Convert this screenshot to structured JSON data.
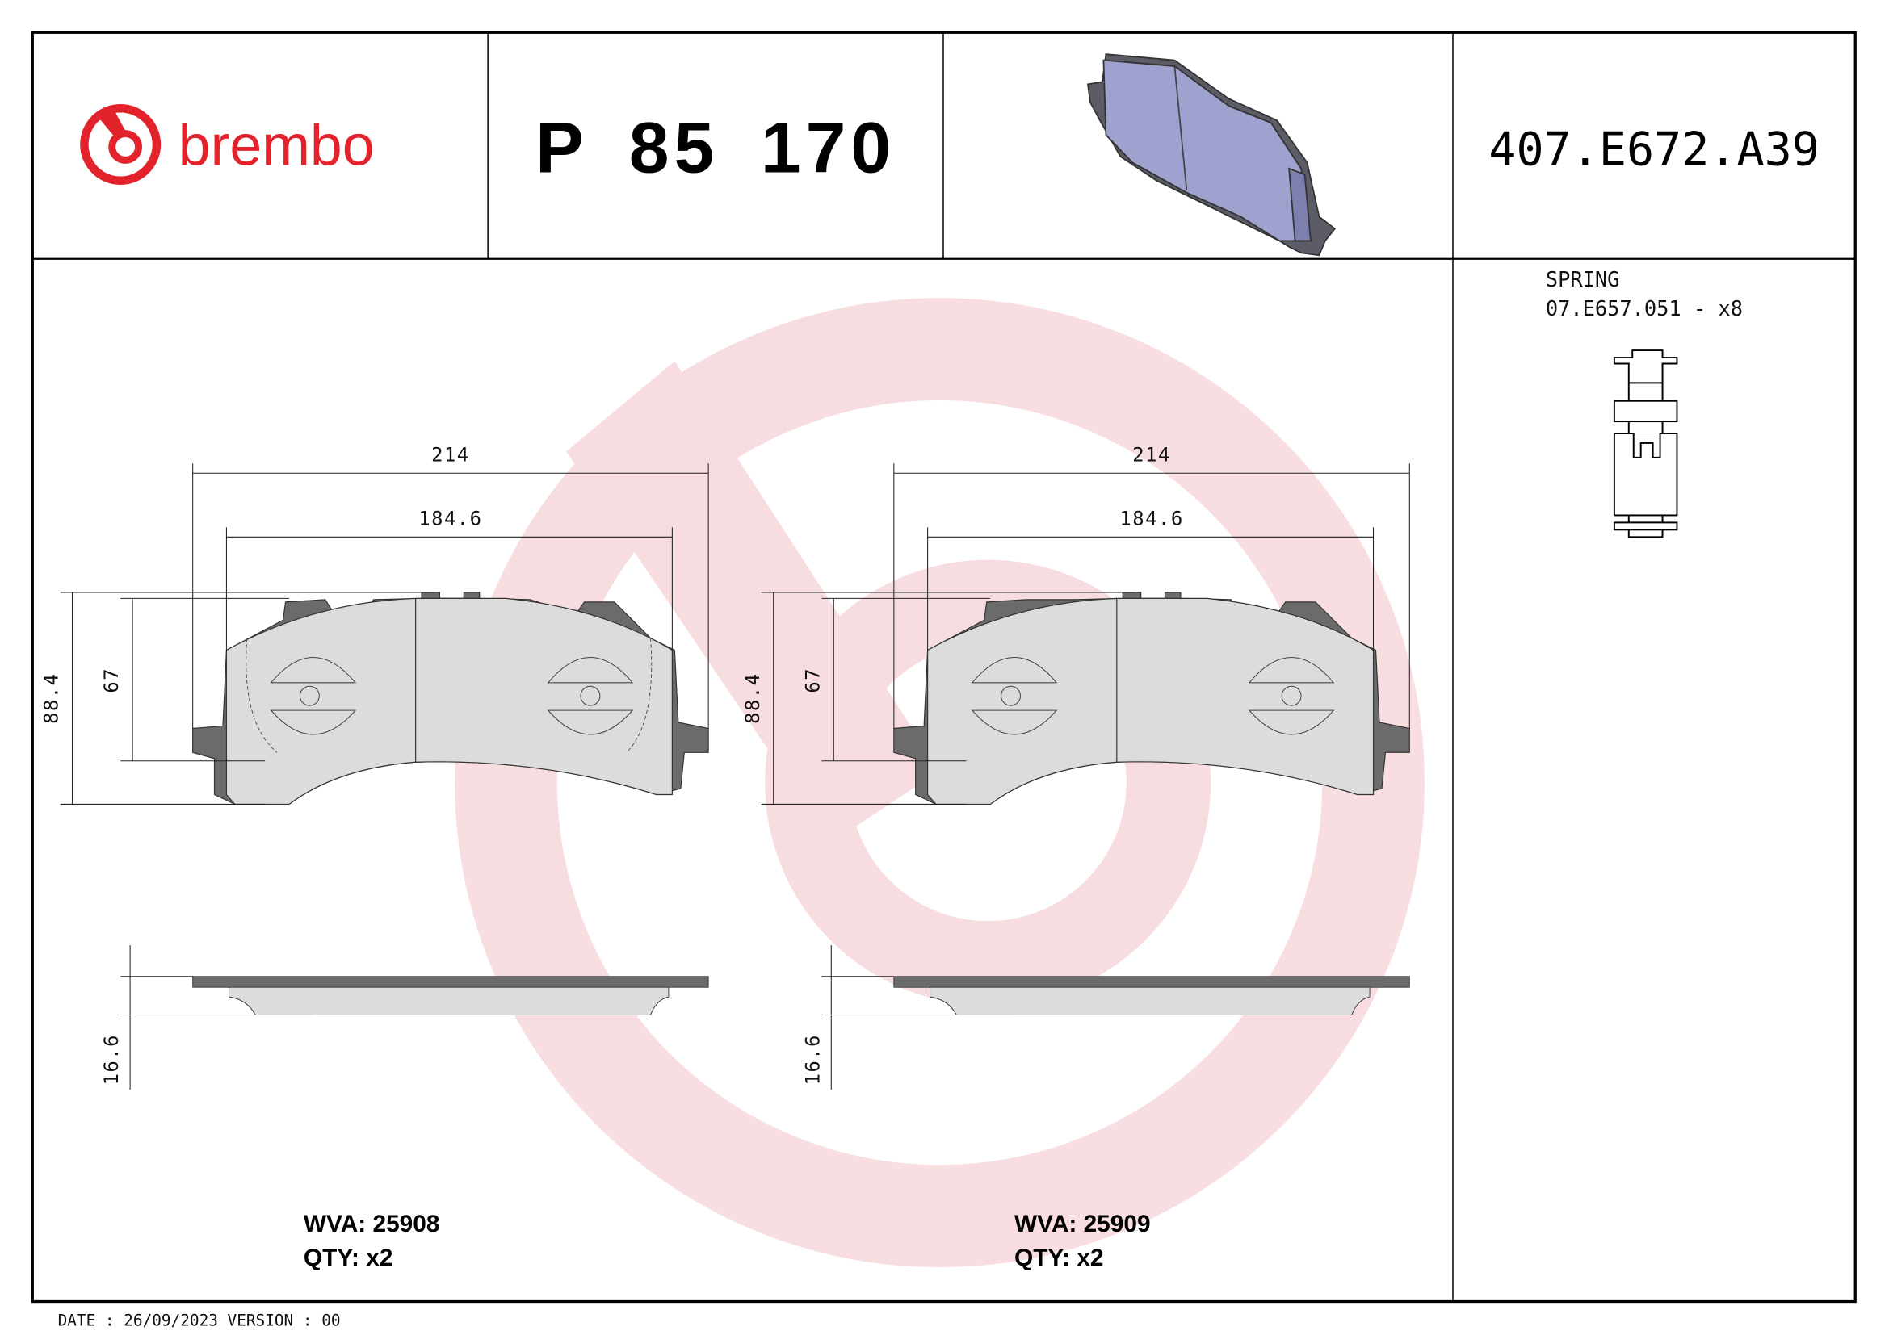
{
  "header": {
    "brand": "brembo",
    "part_number": "P 85 170",
    "oe_code": "407.E672.A39"
  },
  "accessory": {
    "label": "SPRING",
    "code": "07.E657.051 - x8"
  },
  "pads": [
    {
      "overall_width": "214",
      "friction_width": "184.6",
      "overall_height": "88.4",
      "friction_height": "67",
      "thickness": "16.6",
      "wva": "WVA: 25908",
      "qty": "QTY: x2"
    },
    {
      "overall_width": "214",
      "friction_width": "184.6",
      "overall_height": "88.4",
      "friction_height": "67",
      "thickness": "16.6",
      "wva": "WVA: 25909",
      "qty": "QTY: x2"
    }
  ],
  "footer": {
    "date_version": "DATE : 26/09/2023 VERSION : 00"
  },
  "colors": {
    "brand_red": "#e2232b",
    "watermark": "#f6d3d6",
    "backing_plate": "#6b6b6b",
    "friction": "#dcdcdc",
    "render_pad": "#9fa1cf"
  }
}
